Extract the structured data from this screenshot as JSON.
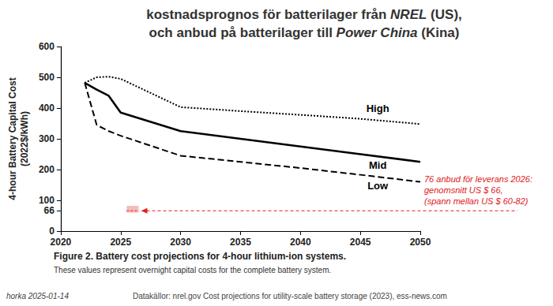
{
  "chart_data": {
    "type": "line",
    "title": [
      [
        "kostnadsprognos för batterilager från ",
        "NREL",
        " (US),"
      ],
      [
        "och anbud på batterilager till ",
        "Power China",
        " (Kina)"
      ]
    ],
    "ylabel": "4-hour Battery Capital Cost\n(2022$/kWh)",
    "caption": "Figure 2. Battery cost projections for 4-hour lithium-ion systems.",
    "subcaption": "These values represent overnight capital costs for the complete battery system.",
    "footer": [
      "horka 2025-01-14",
      "Datakällor: nrel.gov Cost projections for utility-scale battery storage (2023), ess-news.com"
    ],
    "x": [
      2022,
      2023,
      2024,
      2025,
      2030,
      2035,
      2040,
      2045,
      2050
    ],
    "series": [
      {
        "name": "High",
        "color": "#000000",
        "line_style": "dotted",
        "values": [
          482,
          500,
          502,
          495,
          403,
          390,
          378,
          365,
          348
        ]
      },
      {
        "name": "Mid",
        "color": "#000000",
        "line_style": "solid",
        "values": [
          482,
          460,
          440,
          385,
          325,
          300,
          275,
          250,
          225
        ]
      },
      {
        "name": "Low",
        "color": "#000000",
        "line_style": "dashed",
        "values": [
          482,
          345,
          325,
          310,
          245,
          225,
          205,
          183,
          160
        ]
      }
    ],
    "xlim": [
      2020,
      2050
    ],
    "xticks": [
      2020,
      2025,
      2030,
      2035,
      2040,
      2045,
      2050
    ],
    "ylim": [
      0,
      600
    ],
    "yticks": [
      0,
      66,
      100,
      200,
      300,
      400,
      500,
      600
    ],
    "grid": false,
    "annotation": {
      "text": [
        "76 anbud för leverans 2026:",
        "genomsnitt US $ 66,",
        "(spann mellan US $ 60-82)"
      ],
      "x": 2026,
      "value": 66,
      "range": [
        60,
        82
      ],
      "color": "#e02020"
    }
  }
}
